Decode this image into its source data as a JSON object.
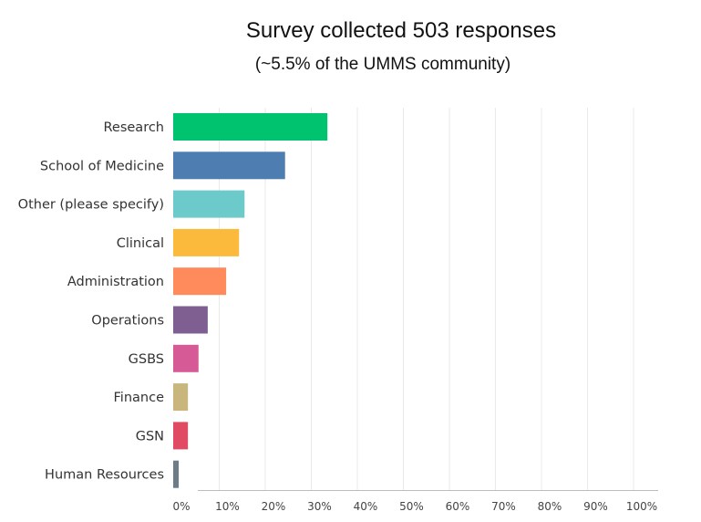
{
  "chart_data": {
    "type": "bar",
    "orientation": "horizontal",
    "title": "Survey collected 503 responses",
    "subtitle": "(~5.5% of the UMMS community)",
    "categories": [
      "Research",
      "School of  Medicine",
      "Other (please specify)",
      "Clinical",
      "Administration",
      "Operations",
      "GSBS",
      "Finance",
      "GSN",
      "Human Resources"
    ],
    "values": [
      33.5,
      24.3,
      15.5,
      14.3,
      11.5,
      7.5,
      5.5,
      3.2,
      3.2,
      1.2
    ],
    "colors": [
      "#00c36f",
      "#4e7db1",
      "#6ccbca",
      "#fbba3c",
      "#ff8a5b",
      "#7f5e91",
      "#d65a96",
      "#c8b67d",
      "#e04b63",
      "#6f7b87"
    ],
    "xlim": [
      0,
      100
    ],
    "xticks": [
      "0%",
      "10%",
      "20%",
      "30%",
      "40%",
      "50%",
      "60%",
      "70%",
      "80%",
      "90%",
      "100%"
    ],
    "xlabel": "",
    "ylabel": "",
    "grid": true,
    "legend": "none"
  }
}
